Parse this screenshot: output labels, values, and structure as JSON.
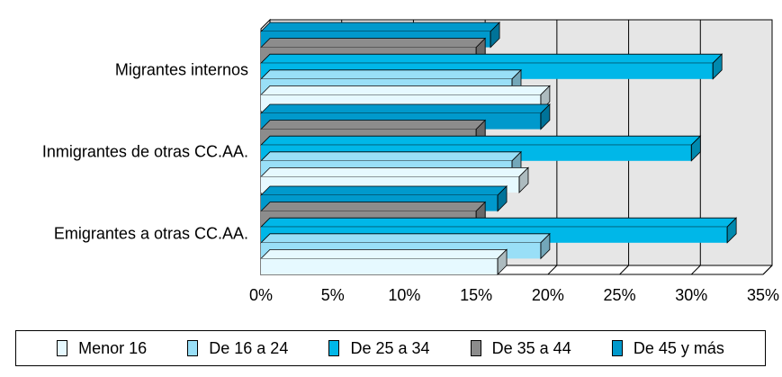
{
  "chart_data": {
    "type": "bar",
    "orientation": "horizontal",
    "categories": [
      "Migrantes internos",
      "Inmigrantes de otras CC.AA.",
      "Emigrantes a otras CC.AA."
    ],
    "series": [
      {
        "name": "Menor 16",
        "color": "#e6f9ff",
        "values": [
          19.5,
          18.0,
          16.5
        ]
      },
      {
        "name": "De 16 a 24",
        "color": "#99dff7",
        "values": [
          17.5,
          17.5,
          19.5
        ]
      },
      {
        "name": "De 25 a 34",
        "color": "#00b7e8",
        "values": [
          31.5,
          30.0,
          32.5
        ]
      },
      {
        "name": "De 35 a 44",
        "color": "#8c8c8c",
        "values": [
          15.0,
          15.0,
          15.0
        ]
      },
      {
        "name": "De 45 y más",
        "color": "#0099cc",
        "values": [
          16.0,
          19.5,
          16.5
        ]
      }
    ],
    "xlim": [
      0,
      35
    ],
    "x_ticks": [
      "0%",
      "5%",
      "10%",
      "15%",
      "20%",
      "25%",
      "30%",
      "35%"
    ],
    "grid": true,
    "legend_position": "bottom",
    "title": "",
    "xlabel": "",
    "ylabel": ""
  }
}
